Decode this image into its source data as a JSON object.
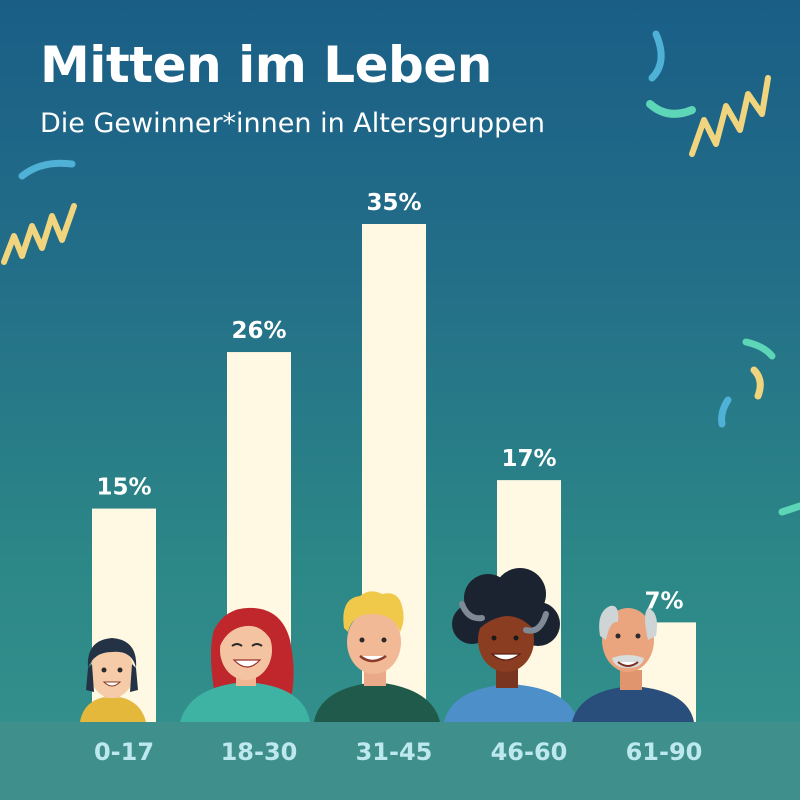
{
  "header": {
    "title": "Mitten im Leben",
    "subtitle": "Die Gewinner*innen in Altersgruppen"
  },
  "chart_data": {
    "type": "bar",
    "title": "Mitten im Leben",
    "subtitle": "Die Gewinner*innen in Altersgruppen",
    "categories": [
      "0-17",
      "18-30",
      "31-45",
      "46-60",
      "61-90"
    ],
    "values": [
      15,
      26,
      35,
      17,
      7
    ],
    "value_labels": [
      "15%",
      "26%",
      "35%",
      "17%",
      "7%"
    ],
    "unit": "%",
    "ylim": [
      0,
      35
    ],
    "grid": false,
    "legend": "none",
    "xlabel": "",
    "ylabel": ""
  },
  "colors": {
    "background_top": "#1a5e86",
    "background_bottom": "#35938d",
    "bar": "#fff8e2",
    "label_band": "#3f8f8c",
    "category_text": "#bde8f0",
    "confetti_yellow": "#f1d57e",
    "confetti_teal": "#5cd6b6",
    "confetti_blue": "#4fb1d6"
  },
  "illustrations": [
    "child-face-icon",
    "young-woman-face-icon",
    "young-man-face-icon",
    "curly-hair-woman-face-icon",
    "senior-man-face-icon"
  ]
}
